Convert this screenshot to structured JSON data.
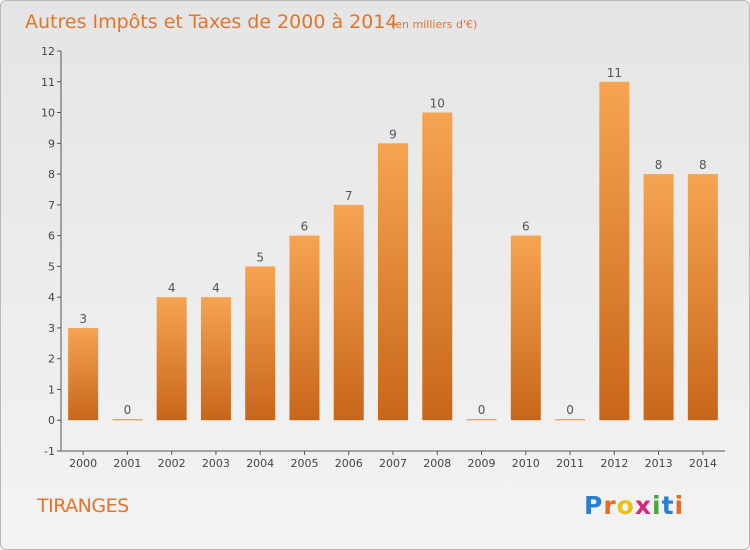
{
  "header": {
    "title": "Autres Impôts et Taxes de 2000 à 2014",
    "subtitle": "(en milliers d'€)"
  },
  "commune": "TIRANGES",
  "logo": {
    "text": "Proxiti",
    "letter_colors": [
      "#2a7fd4",
      "#e86b1f",
      "#e6c21a",
      "#d42a7f",
      "#4aa63a",
      "#2a7fd4",
      "#e86b1f"
    ]
  },
  "colors": {
    "bar_light": "#f6a452",
    "bar_dark": "#c8661a",
    "title": "#e3752b"
  },
  "chart_data": {
    "type": "bar",
    "categories": [
      "2000",
      "2001",
      "2002",
      "2003",
      "2004",
      "2005",
      "2006",
      "2007",
      "2008",
      "2009",
      "2010",
      "2011",
      "2012",
      "2013",
      "2014"
    ],
    "values": [
      3,
      0,
      4,
      4,
      5,
      6,
      7,
      9,
      10,
      0,
      6,
      0,
      11,
      8,
      8
    ],
    "value_labels": [
      "3",
      "0",
      "4",
      "4",
      "5",
      "6",
      "7",
      "9",
      "10",
      "0",
      "6",
      "0",
      "11",
      "8",
      "8"
    ],
    "yticks": [
      "-1",
      "0",
      "1",
      "2",
      "3",
      "4",
      "5",
      "6",
      "7",
      "8",
      "9",
      "10",
      "11",
      "12"
    ],
    "ylim": [
      -1,
      12
    ],
    "grid": false,
    "legend": "none"
  }
}
